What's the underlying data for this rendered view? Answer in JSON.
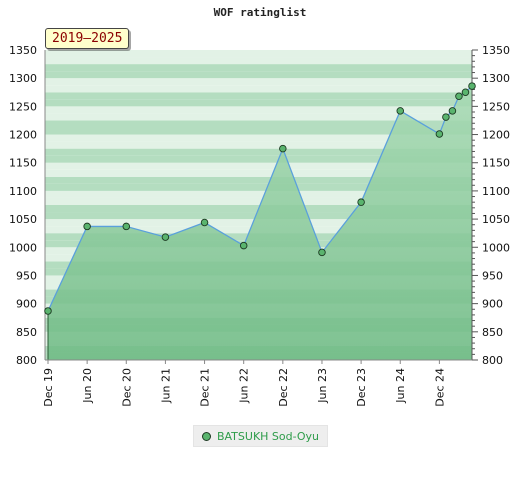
{
  "title": "WOF ratinglist",
  "badge": "2019–2025",
  "colors": {
    "band_dark": "#b4ddc0",
    "band_light": "#e2f2e6",
    "area_top": "#a8dab4",
    "area_bottom": "#6cb982",
    "line": "#5aa0dc",
    "marker": "#5ab46e"
  },
  "chart_data": {
    "type": "area",
    "title": "WOF ratinglist",
    "ylim": [
      800,
      1350
    ],
    "yticks": [
      800,
      850,
      900,
      950,
      1000,
      1050,
      1100,
      1150,
      1200,
      1250,
      1300,
      1350
    ],
    "xticks": [
      "Dec 19",
      "Jun 20",
      "Dec 20",
      "Jun 21",
      "Dec 21",
      "Jun 22",
      "Dec 22",
      "Jun 23",
      "Dec 23",
      "Jun 24",
      "Dec 24"
    ],
    "legend": "bottom-center",
    "series": [
      {
        "name": "BATSUKH Sod-Oyu",
        "points": [
          {
            "x": "2019-12",
            "y": 887
          },
          {
            "x": "2020-06",
            "y": 1037
          },
          {
            "x": "2020-12",
            "y": 1037
          },
          {
            "x": "2021-06",
            "y": 1018
          },
          {
            "x": "2021-12",
            "y": 1044
          },
          {
            "x": "2022-06",
            "y": 1003
          },
          {
            "x": "2022-12",
            "y": 1175
          },
          {
            "x": "2023-06",
            "y": 991
          },
          {
            "x": "2023-12",
            "y": 1080
          },
          {
            "x": "2024-06",
            "y": 1242
          },
          {
            "x": "2024-12",
            "y": 1201
          },
          {
            "x": "2025-01",
            "y": 1231
          },
          {
            "x": "2025-02",
            "y": 1242
          },
          {
            "x": "2025-03",
            "y": 1268
          },
          {
            "x": "2025-04",
            "y": 1275
          },
          {
            "x": "2025-05",
            "y": 1286
          }
        ]
      }
    ]
  }
}
